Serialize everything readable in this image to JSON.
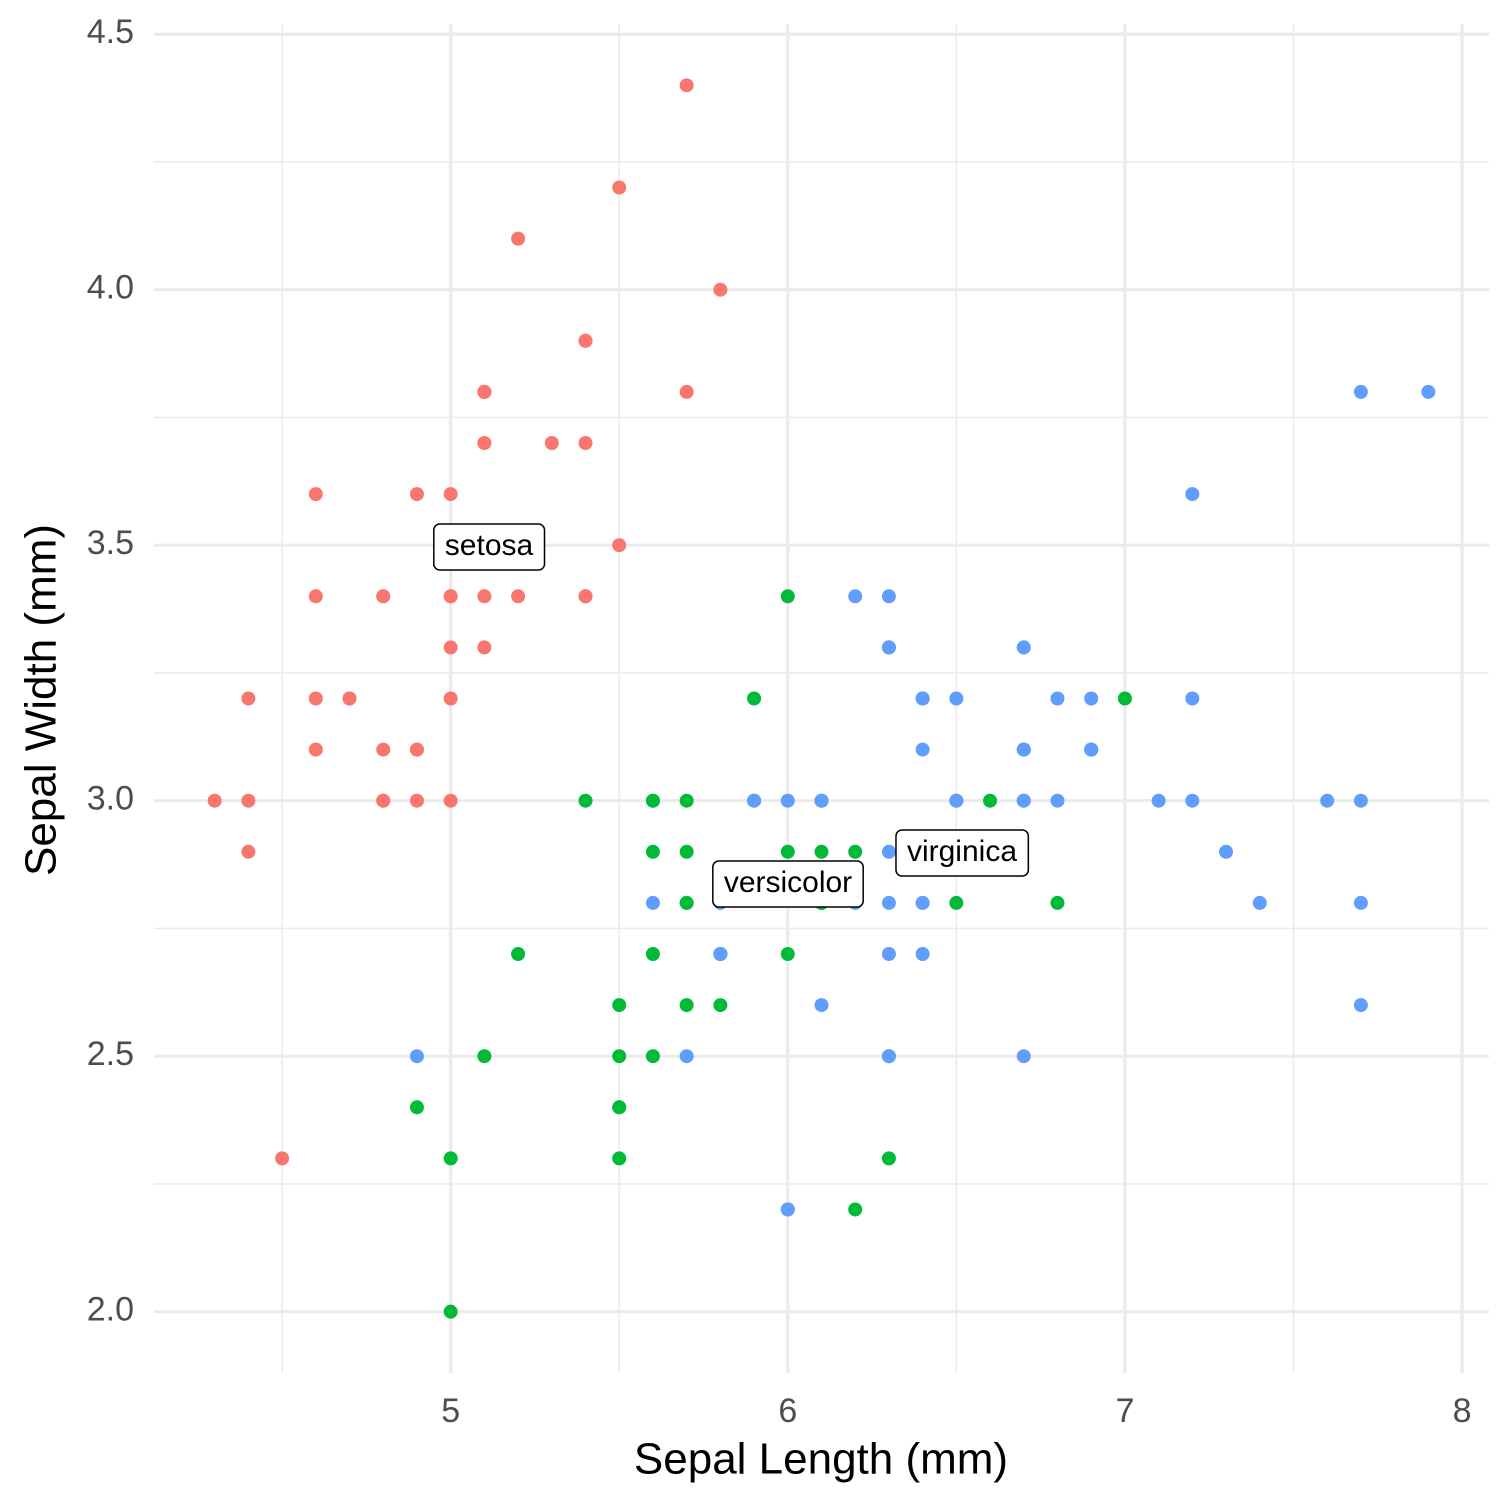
{
  "chart_data": {
    "type": "scatter",
    "x_label": "Sepal Length (mm)",
    "y_label": "Sepal Width (mm)",
    "xlim": [
      4.12,
      8.08
    ],
    "ylim": [
      1.88,
      4.52
    ],
    "xticks": [
      5,
      6,
      7,
      8
    ],
    "yticks": [
      {
        "value": 2,
        "label": "2.0"
      },
      {
        "value": 2.5,
        "label": "2.5"
      },
      {
        "value": 3,
        "label": "3.0"
      },
      {
        "value": 3.5,
        "label": "3.5"
      },
      {
        "value": 4,
        "label": "4.0"
      },
      {
        "value": 4.5,
        "label": "4.5"
      }
    ],
    "minor_xticks": [
      4.5,
      5.5,
      6.5,
      7.5
    ],
    "minor_yticks": [
      2.25,
      2.75,
      3.25,
      3.75,
      4.25
    ],
    "grid": true,
    "series": [
      {
        "name": "setosa",
        "color": "#F8766D",
        "x": [
          5.1,
          4.9,
          4.7,
          4.6,
          5.0,
          5.4,
          4.6,
          5.0,
          4.4,
          4.9,
          5.4,
          4.8,
          4.8,
          4.3,
          5.8,
          5.7,
          5.4,
          5.1,
          5.7,
          5.1,
          5.4,
          5.1,
          4.6,
          5.1,
          4.8,
          5.0,
          5.0,
          5.2,
          5.2,
          4.7,
          4.8,
          5.4,
          5.2,
          5.5,
          4.9,
          5.0,
          5.5,
          4.9,
          4.4,
          5.1,
          5.0,
          4.5,
          4.4,
          5.0,
          5.1,
          4.8,
          5.1,
          4.6,
          5.3,
          5.0
        ],
        "y": [
          3.5,
          3.0,
          3.2,
          3.1,
          3.6,
          3.9,
          3.4,
          3.4,
          2.9,
          3.1,
          3.7,
          3.4,
          3.0,
          3.0,
          4.0,
          4.4,
          3.9,
          3.5,
          3.8,
          3.8,
          3.4,
          3.7,
          3.6,
          3.3,
          3.4,
          3.0,
          3.4,
          3.5,
          3.4,
          3.2,
          3.1,
          3.4,
          4.1,
          4.2,
          3.1,
          3.2,
          3.5,
          3.6,
          3.0,
          3.4,
          3.5,
          2.3,
          3.2,
          3.5,
          3.8,
          3.0,
          3.8,
          3.2,
          3.7,
          3.3
        ]
      },
      {
        "name": "versicolor",
        "color": "#00BA38",
        "x": [
          7.0,
          6.4,
          6.9,
          5.5,
          6.5,
          5.7,
          6.3,
          4.9,
          6.6,
          5.2,
          5.0,
          5.9,
          6.0,
          6.1,
          5.6,
          6.7,
          5.6,
          5.8,
          6.2,
          5.6,
          5.9,
          6.1,
          6.3,
          6.1,
          6.4,
          6.6,
          6.8,
          6.7,
          6.0,
          5.7,
          5.5,
          5.5,
          5.8,
          6.0,
          5.4,
          6.0,
          6.7,
          6.3,
          5.6,
          5.5,
          5.5,
          6.1,
          5.8,
          5.0,
          5.6,
          5.7,
          5.7,
          6.2,
          5.1,
          5.7
        ],
        "y": [
          3.2,
          3.2,
          3.1,
          2.3,
          2.8,
          2.8,
          3.3,
          2.4,
          2.9,
          2.7,
          2.0,
          3.0,
          2.2,
          2.9,
          2.9,
          3.1,
          3.0,
          2.7,
          2.2,
          2.5,
          3.2,
          2.8,
          2.5,
          2.8,
          2.9,
          3.0,
          2.8,
          3.0,
          2.9,
          2.6,
          2.4,
          2.4,
          2.7,
          2.7,
          3.0,
          3.4,
          3.1,
          2.3,
          3.0,
          2.5,
          2.6,
          3.0,
          2.6,
          2.3,
          2.7,
          3.0,
          2.9,
          2.9,
          2.5,
          2.8
        ]
      },
      {
        "name": "virginica",
        "color": "#619CFF",
        "x": [
          6.3,
          5.8,
          7.1,
          6.3,
          6.5,
          7.6,
          4.9,
          7.3,
          6.7,
          7.2,
          6.5,
          6.4,
          6.8,
          5.7,
          5.8,
          6.4,
          6.5,
          7.7,
          7.7,
          6.0,
          6.9,
          5.6,
          7.7,
          6.3,
          6.7,
          7.2,
          6.2,
          6.1,
          6.4,
          7.2,
          7.4,
          7.9,
          6.4,
          6.3,
          6.1,
          7.7,
          6.3,
          6.4,
          6.0,
          6.9,
          6.7,
          6.9,
          5.8,
          6.8,
          6.7,
          6.7,
          6.3,
          6.5,
          6.2,
          5.9
        ],
        "y": [
          3.3,
          2.7,
          3.0,
          2.9,
          3.0,
          3.0,
          2.5,
          2.9,
          2.5,
          3.6,
          3.2,
          2.7,
          3.0,
          2.5,
          2.8,
          3.2,
          3.0,
          3.8,
          2.6,
          2.2,
          3.2,
          2.8,
          2.8,
          2.7,
          3.3,
          3.2,
          2.8,
          3.0,
          2.8,
          3.0,
          2.8,
          3.8,
          2.8,
          2.8,
          2.6,
          3.0,
          3.4,
          3.1,
          3.0,
          3.1,
          3.1,
          3.1,
          2.7,
          3.2,
          3.3,
          3.0,
          2.5,
          3.0,
          3.4,
          3.0
        ]
      }
    ]
  }
}
